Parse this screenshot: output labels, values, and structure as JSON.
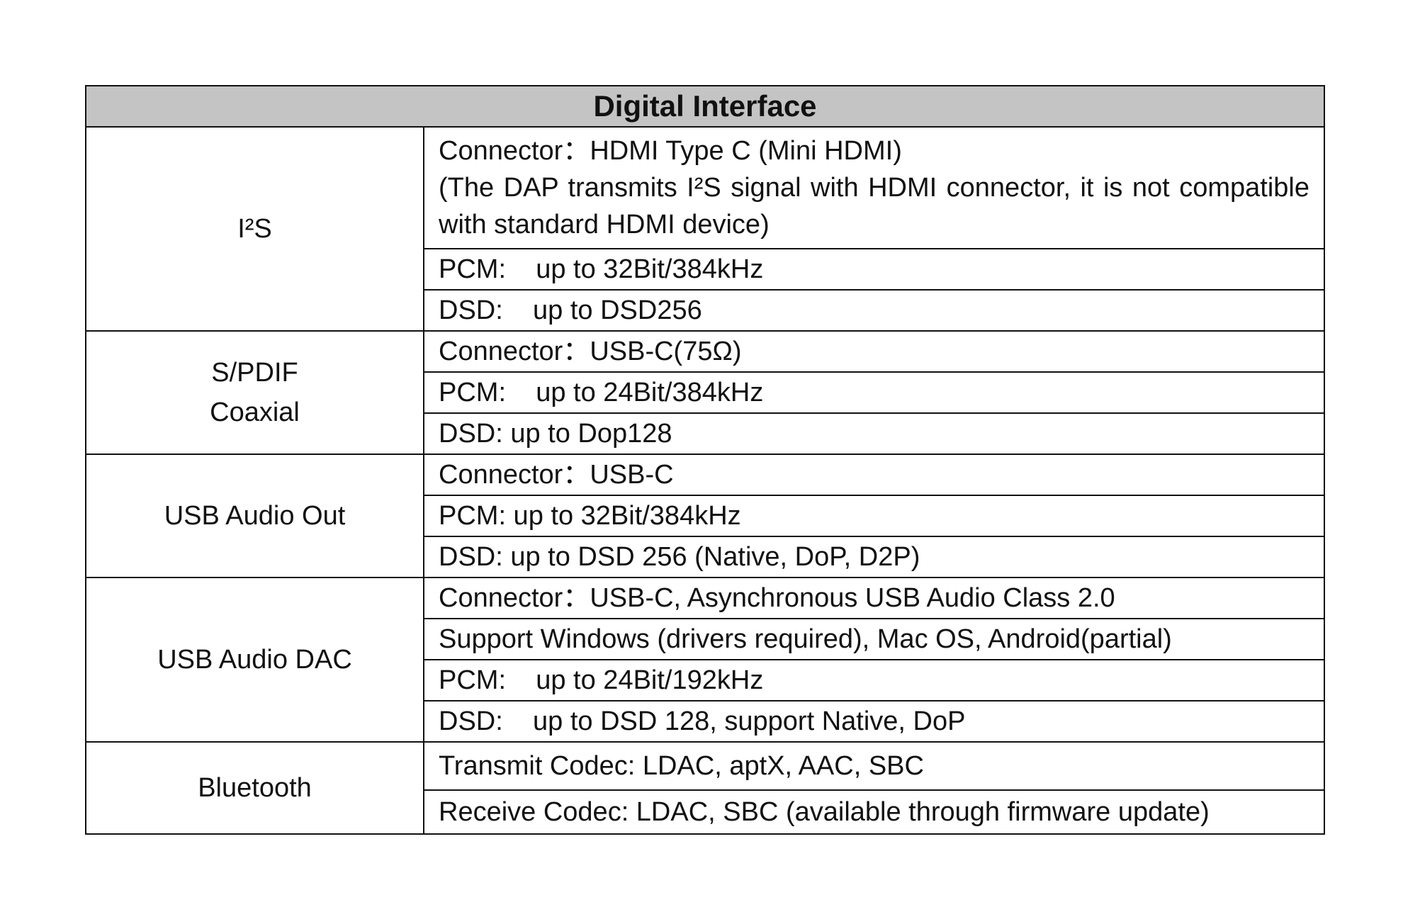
{
  "table": {
    "title": "Digital Interface",
    "sections": [
      {
        "label": "I²S",
        "rows": [
          "Connector：HDMI Type C (Mini HDMI)",
          "(The DAP transmits I²S signal with HDMI connector, it is not compatible with standard HDMI device)",
          "PCM:    up to 32Bit/384kHz",
          "DSD:    up to DSD256"
        ]
      },
      {
        "label_lines": [
          "S/PDIF",
          "Coaxial"
        ],
        "rows": [
          "Connector：USB-C(75Ω)",
          "PCM:    up to 24Bit/384kHz",
          "DSD: up to Dop128"
        ]
      },
      {
        "label": "USB Audio Out",
        "rows": [
          "Connector：USB-C",
          "PCM: up to 32Bit/384kHz",
          "DSD: up to DSD 256 (Native, DoP, D2P)"
        ]
      },
      {
        "label": "USB Audio DAC",
        "rows": [
          "Connector：USB-C, Asynchronous USB Audio Class 2.0",
          "Support Windows (drivers required), Mac OS, Android(partial)",
          "PCM:    up to 24Bit/192kHz",
          "DSD:    up to DSD 128, support Native, DoP"
        ]
      },
      {
        "label": "Bluetooth",
        "rows": [
          "Transmit Codec: LDAC, aptX, AAC, SBC",
          "Receive Codec: LDAC, SBC (available through firmware update)"
        ]
      }
    ]
  }
}
